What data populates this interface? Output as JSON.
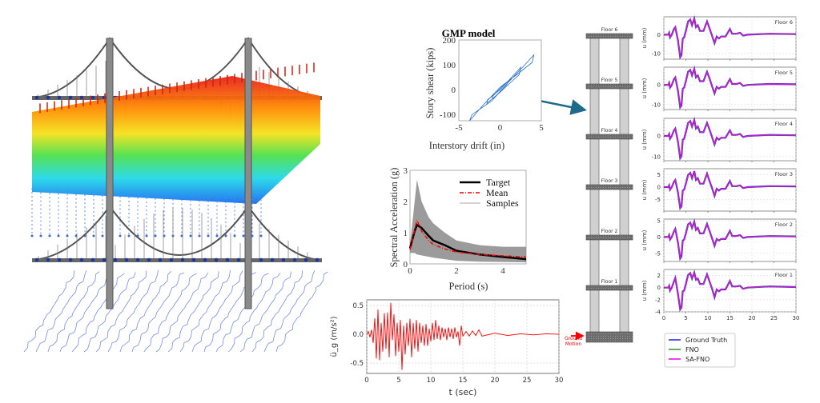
{
  "colors": {
    "ground_truth": "#1f1fe0",
    "fno": "#2a9a2a",
    "sa_fno": "#ee00ee",
    "ground_motion": "#ff0000",
    "target": "#000000",
    "mean": "#ff0000",
    "samples": "#8a8a8a",
    "arrow": "#1e6a8a"
  },
  "building": {
    "floor_labels": [
      "Floor 6",
      "Floor 5",
      "Floor 4",
      "Floor 3",
      "Floor 2",
      "Floor 1"
    ],
    "ground_label_1": "Ground",
    "ground_label_2": "Motion"
  },
  "chart_data": [
    {
      "id": "gmp",
      "type": "line",
      "title": "GMP model",
      "xlabel": "Interstory drift (in)",
      "ylabel": "Story shear (kips)",
      "xlim": [
        -5,
        5
      ],
      "ylim": [
        -125,
        200
      ],
      "xticks": [
        "-5",
        "0",
        "5"
      ],
      "yticks": [
        "200",
        "100",
        "0",
        "-100"
      ],
      "series": [
        {
          "points": [
            [
              -3.7,
              -125
            ],
            [
              -3.4,
              -100
            ],
            [
              -1,
              -45
            ],
            [
              1,
              30
            ],
            [
              3,
              100
            ],
            [
              4.1,
              140
            ],
            [
              3.9,
              110
            ],
            [
              2,
              60
            ],
            [
              0,
              10
            ],
            [
              -2,
              -60
            ],
            [
              -3.7,
              -125
            ]
          ]
        },
        {
          "points": [
            [
              -1.5,
              -40
            ],
            [
              0,
              0
            ],
            [
              2.5,
              90
            ],
            [
              2.3,
              60
            ],
            [
              0,
              -10
            ],
            [
              -1.6,
              -55
            ],
            [
              -1.5,
              -40
            ]
          ]
        },
        {
          "points": [
            [
              -1,
              -30
            ],
            [
              0,
              5
            ],
            [
              1,
              35
            ],
            [
              0.8,
              20
            ],
            [
              -0.8,
              -35
            ],
            [
              -1,
              -30
            ]
          ]
        }
      ]
    },
    {
      "id": "spectrum",
      "type": "line",
      "xlabel": "Period (s)",
      "ylabel": "Spectral Acceleration (g)",
      "xlim": [
        0,
        5
      ],
      "ylim": [
        0,
        3
      ],
      "xticks": [
        "0",
        "2",
        "4"
      ],
      "yticks": [
        "0",
        "1",
        "2",
        "3"
      ],
      "legend": {
        "placement": "top-right",
        "entries": [
          "Target",
          "Mean",
          "Samples"
        ]
      },
      "samples_upper": [
        [
          0,
          0.6
        ],
        [
          0.2,
          2.0
        ],
        [
          0.3,
          2.7
        ],
        [
          0.5,
          2.0
        ],
        [
          0.8,
          1.5
        ],
        [
          1,
          1.3
        ],
        [
          1.5,
          1.0
        ],
        [
          2,
          0.75
        ],
        [
          3,
          0.6
        ],
        [
          4,
          0.55
        ],
        [
          5,
          0.55
        ]
      ],
      "samples_lower": [
        [
          0,
          0.35
        ],
        [
          0.2,
          0.35
        ],
        [
          0.3,
          0.3
        ],
        [
          1,
          0.2
        ],
        [
          2,
          0.1
        ],
        [
          3,
          0.07
        ],
        [
          5,
          0.05
        ]
      ],
      "target": [
        [
          0,
          0.5
        ],
        [
          0.2,
          1.05
        ],
        [
          0.3,
          1.25
        ],
        [
          0.5,
          1.15
        ],
        [
          0.8,
          0.9
        ],
        [
          1,
          0.75
        ],
        [
          1.5,
          0.6
        ],
        [
          2,
          0.42
        ],
        [
          3,
          0.3
        ],
        [
          4,
          0.22
        ],
        [
          5,
          0.15
        ]
      ],
      "mean": [
        [
          0,
          0.45
        ],
        [
          0.2,
          1.1
        ],
        [
          0.3,
          1.4
        ],
        [
          0.5,
          1.05
        ],
        [
          0.8,
          0.75
        ],
        [
          1,
          0.62
        ],
        [
          1.5,
          0.48
        ],
        [
          2,
          0.38
        ],
        [
          3,
          0.3
        ],
        [
          4,
          0.26
        ],
        [
          5,
          0.22
        ]
      ]
    },
    {
      "id": "ground_motion",
      "type": "line",
      "xlabel": "t (sec)",
      "ylabel": "ü_g (m/s²)",
      "xlim": [
        0,
        30
      ],
      "ylim": [
        -0.68,
        0.6
      ],
      "xticks": [
        "0",
        "5",
        "10",
        "15",
        "20",
        "25",
        "30"
      ],
      "yticks": [
        "0.5",
        "0.0",
        "-0.5"
      ],
      "grid": true,
      "points": [
        [
          0,
          0
        ],
        [
          0.25,
          0.05
        ],
        [
          0.5,
          -0.05
        ],
        [
          0.75,
          0.08
        ],
        [
          1,
          -0.15
        ],
        [
          1.25,
          0.28
        ],
        [
          1.5,
          -0.42
        ],
        [
          1.75,
          0.43
        ],
        [
          2,
          -0.45
        ],
        [
          2.25,
          0.2
        ],
        [
          2.5,
          -0.3
        ],
        [
          2.75,
          0.37
        ],
        [
          3,
          -0.25
        ],
        [
          3.25,
          0.38
        ],
        [
          3.5,
          -0.4
        ],
        [
          3.75,
          0.55
        ],
        [
          4,
          -0.1
        ],
        [
          4.25,
          0.35
        ],
        [
          4.5,
          -0.38
        ],
        [
          4.75,
          0.2
        ],
        [
          5,
          -0.3
        ],
        [
          5.25,
          0.25
        ],
        [
          5.5,
          -0.62
        ],
        [
          5.75,
          0.15
        ],
        [
          6,
          -0.35
        ],
        [
          6.25,
          0.2
        ],
        [
          6.5,
          -0.2
        ],
        [
          6.75,
          0.27
        ],
        [
          7,
          -0.4
        ],
        [
          7.25,
          0.2
        ],
        [
          7.5,
          -0.25
        ],
        [
          7.75,
          0.25
        ],
        [
          8,
          -0.3
        ],
        [
          8.25,
          0.2
        ],
        [
          8.5,
          -0.15
        ],
        [
          8.75,
          0.15
        ],
        [
          9,
          -0.2
        ],
        [
          9.25,
          0.18
        ],
        [
          9.5,
          -0.2
        ],
        [
          9.75,
          0.1
        ],
        [
          10,
          -0.12
        ],
        [
          10.25,
          0.2
        ],
        [
          10.5,
          -0.1
        ],
        [
          10.75,
          0.25
        ],
        [
          11,
          -0.08
        ],
        [
          11.25,
          0.15
        ],
        [
          11.5,
          -0.1
        ],
        [
          11.75,
          0.12
        ],
        [
          12,
          -0.05
        ],
        [
          12.25,
          0.1
        ],
        [
          12.5,
          -0.1
        ],
        [
          12.75,
          0.12
        ],
        [
          13,
          -0.05
        ],
        [
          13.25,
          0.1
        ],
        [
          13.5,
          -0.08
        ],
        [
          13.75,
          0.12
        ],
        [
          14,
          -0.05
        ],
        [
          14.25,
          0.05
        ],
        [
          14.5,
          -0.2
        ],
        [
          14.75,
          0.15
        ],
        [
          15,
          -0.03
        ],
        [
          15.5,
          0.05
        ],
        [
          16,
          -0.03
        ],
        [
          16.5,
          0.06
        ],
        [
          17,
          -0.02
        ],
        [
          17.5,
          0.08
        ],
        [
          18,
          -0.03
        ],
        [
          20,
          0.02
        ],
        [
          22,
          -0.02
        ],
        [
          24,
          0.01
        ],
        [
          26,
          -0.01
        ],
        [
          28,
          0.01
        ],
        [
          30,
          0
        ]
      ]
    },
    {
      "id": "floor_response",
      "type": "line",
      "ylabel": "u (mm)",
      "xlim": [
        0,
        30
      ],
      "xticks": [
        "0",
        "5",
        "10",
        "15",
        "20",
        "25",
        "30"
      ],
      "grid": true,
      "legend": {
        "placement": "below",
        "entries": [
          "Ground Truth",
          "FNO",
          "SA-FNO"
        ]
      },
      "t": [
        0,
        1,
        1.2,
        1.4,
        1.8,
        2.3,
        2.6,
        3.2,
        3.7,
        4.0,
        4.3,
        4.6,
        5.0,
        5.5,
        6.0,
        6.4,
        6.9,
        7.3,
        7.7,
        8.2,
        9.0,
        9.8,
        10.3,
        11.0,
        11.5,
        12.0,
        12.5,
        13,
        14,
        15,
        15.5,
        16.5,
        17.3,
        18,
        19,
        24,
        30
      ],
      "floors": [
        {
          "label": "Floor 6",
          "ylim": [
            -13,
            9.5
          ],
          "yticks": [
            "0",
            "-10"
          ],
          "u": [
            0,
            0,
            1,
            -1.5,
            0,
            3,
            4,
            -3,
            -12,
            -11,
            -2,
            -1.5,
            2,
            7,
            8,
            5,
            8.5,
            4,
            5,
            2,
            2,
            7,
            4,
            -1,
            -4.5,
            -1,
            -2,
            -1,
            -1,
            3,
            0.5,
            0.5,
            1,
            -0.5,
            0,
            0.5,
            0.3
          ]
        },
        {
          "label": "Floor 5",
          "ylim": [
            -12.5,
            9
          ],
          "yticks": [
            "0",
            "-10"
          ],
          "u": [
            0,
            0,
            1,
            -1.4,
            0,
            2.9,
            3.8,
            -2.9,
            -11.4,
            -10.5,
            -1.9,
            -1.4,
            1.9,
            6.7,
            7.6,
            4.8,
            8.1,
            3.8,
            4.8,
            1.9,
            1.9,
            6.7,
            3.8,
            -1,
            -4.3,
            -1,
            -1.9,
            -1,
            -1,
            2.9,
            0.5,
            0.5,
            1,
            -0.5,
            0,
            0.5,
            0.3
          ]
        },
        {
          "label": "Floor 4",
          "ylim": [
            -12,
            8.5
          ],
          "yticks": [
            "0",
            "-10"
          ],
          "u": [
            0,
            0,
            0.9,
            -1.4,
            0,
            2.7,
            3.6,
            -2.7,
            -10.8,
            -9.9,
            -1.8,
            -1.4,
            1.8,
            6.3,
            7.2,
            4.5,
            7.7,
            3.6,
            4.5,
            1.8,
            1.8,
            6.3,
            3.6,
            -0.9,
            -4.1,
            -0.9,
            -1.8,
            -0.9,
            -0.9,
            2.7,
            0.5,
            0.5,
            0.9,
            -0.5,
            0,
            0.5,
            0.3
          ]
        },
        {
          "label": "Floor 3",
          "ylim": [
            -9.8,
            7.5
          ],
          "yticks": [
            "5",
            "0",
            "-5"
          ],
          "u": [
            0,
            0,
            0.7,
            -1.1,
            0,
            2.2,
            2.9,
            -2.2,
            -8.6,
            -7.9,
            -1.4,
            -1.1,
            1.4,
            5.0,
            5.8,
            3.6,
            6.5,
            2.9,
            3.6,
            1.4,
            1.4,
            5.5,
            2.9,
            -0.7,
            -3.6,
            -0.7,
            -1.4,
            -0.7,
            -0.7,
            2.5,
            0.4,
            0.4,
            0.7,
            -0.4,
            0,
            0.4,
            0.3
          ]
        },
        {
          "label": "Floor 2",
          "ylim": [
            -7.5,
            5.5
          ],
          "yticks": [
            "5",
            "0",
            "-5"
          ],
          "u": [
            0,
            0,
            0.6,
            -0.8,
            0,
            1.7,
            2.5,
            -1.7,
            -6.6,
            -6.0,
            -1.1,
            -0.8,
            1.1,
            3.9,
            4.4,
            2.8,
            4.7,
            2.2,
            2.8,
            1.1,
            1.1,
            4.0,
            2.2,
            -0.6,
            -2.7,
            -0.6,
            -1.1,
            -0.6,
            -0.6,
            1.9,
            0.3,
            0.3,
            0.6,
            -0.3,
            0,
            0.3,
            0.2
          ]
        },
        {
          "label": "Floor 1",
          "ylim": [
            -4,
            3
          ],
          "yticks": [
            "2",
            "0",
            "-2",
            "-4"
          ],
          "u": [
            0,
            0,
            0.3,
            -0.5,
            0,
            1.0,
            1.6,
            -1.0,
            -3.6,
            -3.3,
            -0.6,
            -0.5,
            0.6,
            2.1,
            2.4,
            1.5,
            2.5,
            1.3,
            1.5,
            0.6,
            0.6,
            2.2,
            1.2,
            -0.3,
            -1.6,
            -0.3,
            -0.6,
            -0.3,
            -0.3,
            1.1,
            0.2,
            0.2,
            0.3,
            -0.2,
            0,
            0.2,
            0.1
          ]
        }
      ]
    }
  ]
}
